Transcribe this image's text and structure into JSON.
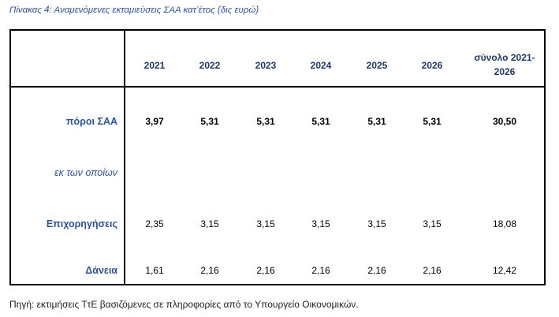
{
  "caption": "Πίνακας 4: Αναμενόμενες εκταμιεύσεις ΣΑΑ κατ’έτος (δις ευρώ)",
  "columns": [
    "2021",
    "2022",
    "2023",
    "2024",
    "2025",
    "2026"
  ],
  "total_header_line1": "σύνολο 2021-",
  "total_header_line2": "2026",
  "rows": [
    {
      "label": "πόροι ΣΑΑ",
      "values": [
        "3,97",
        "5,31",
        "5,31",
        "5,31",
        "5,31",
        "5,31"
      ],
      "total": "30,50"
    },
    {
      "label": "εκ των οποίων",
      "values": [],
      "total": ""
    },
    {
      "label": "Επιχορηγήσεις",
      "values": [
        "2,35",
        "3,15",
        "3,15",
        "3,15",
        "3,15",
        "3,15"
      ],
      "total": "18,08"
    },
    {
      "label": "Δάνεια",
      "values": [
        "1,61",
        "2,16",
        "2,16",
        "2,16",
        "2,16",
        "2,16"
      ],
      "total": "12,42"
    }
  ],
  "source": "Πηγή: εκτιμήσεις ΤτΕ βασιζόμενες σε πληροφορίες από το Υπουργείο Οικονομικών."
}
